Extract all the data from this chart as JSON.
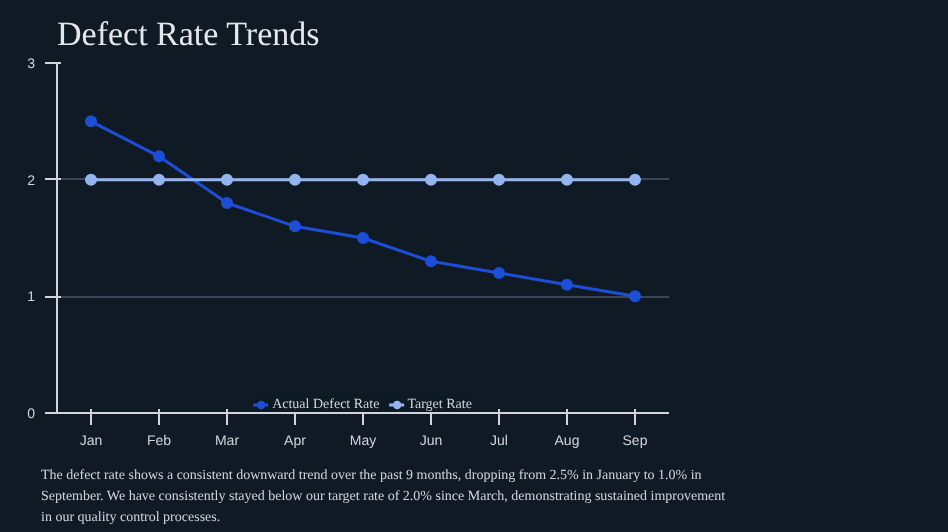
{
  "chart_data": {
    "type": "line",
    "title": "Defect Rate Trends",
    "categories": [
      "Jan",
      "Feb",
      "Mar",
      "Apr",
      "May",
      "Jun",
      "Jul",
      "Aug",
      "Sep"
    ],
    "series": [
      {
        "name": "Actual Defect Rate",
        "color": "#1d4ed8",
        "values": [
          2.5,
          2.2,
          1.8,
          1.6,
          1.5,
          1.3,
          1.2,
          1.1,
          1.0
        ]
      },
      {
        "name": "Target Rate",
        "color": "#93b4f0",
        "values": [
          2.0,
          2.0,
          2.0,
          2.0,
          2.0,
          2.0,
          2.0,
          2.0,
          2.0
        ]
      }
    ],
    "ylim": [
      0,
      3
    ],
    "yticks": [
      0,
      1,
      2,
      3
    ],
    "grid": "y",
    "legend": "bottom",
    "marker": "circle",
    "line_style": "solid",
    "annotations": [
      "The defect rate shows a consistent downward trend over the past 9 months, dropping from 2.5% in January to 1.0% in September. We have consistently stayed below our target rate of 2.0% since March, demonstrating sustained improvement in our quality control processes."
    ]
  }
}
